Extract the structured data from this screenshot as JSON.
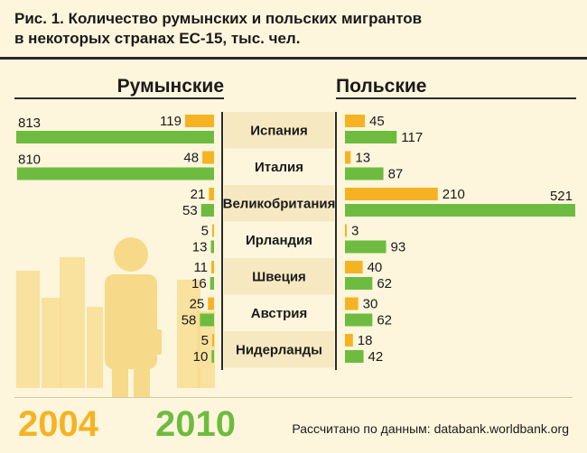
{
  "header": {
    "title_line1": "Рис. 1.  Количество румынских и польских мигрантов",
    "title_line2": "в некоторых странах ЕС-15, тыс. чел."
  },
  "labels": {
    "left": "Румынские",
    "right": "Польские"
  },
  "legend": {
    "year_2004": "2004",
    "year_2010": "2010"
  },
  "source": "Рассчитано по данным: databank.worldbank.org",
  "colors": {
    "y2004": "#f5b324",
    "y2010": "#6ebc3f",
    "background": "#fdf6dc",
    "country_band": "#f6e9c1",
    "figure": "#f7d98a"
  },
  "chart_data": {
    "type": "bar",
    "orientation": "horizontal-butterfly",
    "categories": [
      "Испания",
      "Италия",
      "Великобритания",
      "Ирландия",
      "Швеция",
      "Австрия",
      "Нидерланды"
    ],
    "groups": [
      {
        "name": "Румынские",
        "series": [
          {
            "name": "2004",
            "values": [
              119,
              48,
              21,
              5,
              11,
              25,
              5
            ]
          },
          {
            "name": "2010",
            "values": [
              813,
              810,
              53,
              13,
              16,
              58,
              10
            ]
          }
        ]
      },
      {
        "name": "Польские",
        "series": [
          {
            "name": "2004",
            "values": [
              45,
              13,
              210,
              3,
              40,
              30,
              18
            ]
          },
          {
            "name": "2010",
            "values": [
              117,
              87,
              521,
              93,
              62,
              62,
              42
            ]
          }
        ]
      }
    ]
  }
}
